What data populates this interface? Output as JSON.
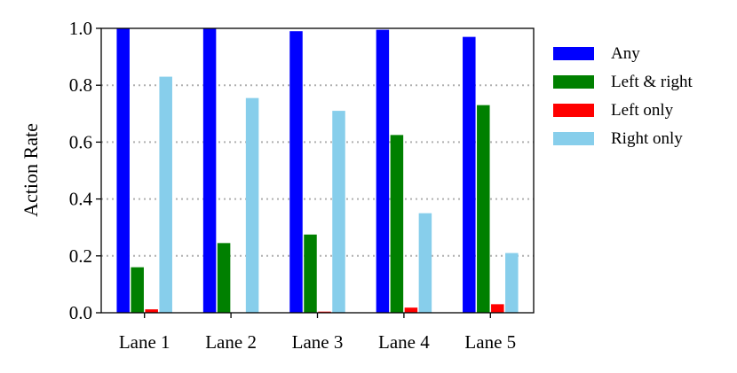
{
  "chart_data": {
    "type": "bar",
    "categories": [
      "Lane 1",
      "Lane 2",
      "Lane 3",
      "Lane 4",
      "Lane 5"
    ],
    "series": [
      {
        "name": "Any",
        "color": "#0000ff",
        "values": [
          1.0,
          1.0,
          0.99,
          0.995,
          0.97
        ]
      },
      {
        "name": "Left & right",
        "color": "#008000",
        "values": [
          0.16,
          0.245,
          0.275,
          0.625,
          0.73
        ]
      },
      {
        "name": "Left only",
        "color": "#ff0000",
        "values": [
          0.012,
          0.0,
          0.004,
          0.018,
          0.03
        ]
      },
      {
        "name": "Right only",
        "color": "#87ceeb",
        "values": [
          0.83,
          0.755,
          0.71,
          0.35,
          0.21
        ]
      }
    ],
    "ylabel": "Action Rate",
    "xlabel": "",
    "ylim": [
      0,
      1.0
    ],
    "yticks": [
      "0.0",
      "0.2",
      "0.4",
      "0.6",
      "0.8",
      "1.0"
    ],
    "ytick_values": [
      0,
      0.2,
      0.4,
      0.6,
      0.8,
      1.0
    ],
    "grid": "horizontal-dotted",
    "legend_position": "right"
  }
}
